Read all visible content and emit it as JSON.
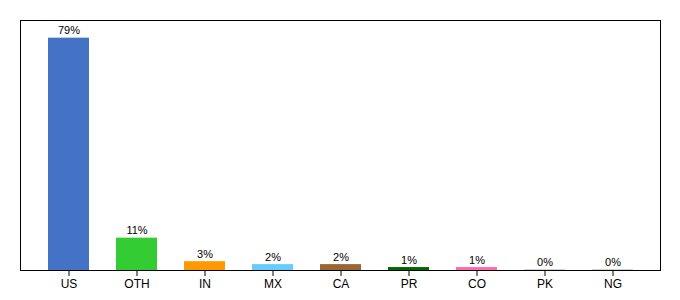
{
  "chart_data": {
    "type": "bar",
    "categories": [
      "US",
      "OTH",
      "IN",
      "MX",
      "CA",
      "PR",
      "CO",
      "PK",
      "NG"
    ],
    "values": [
      79,
      11,
      3,
      2,
      2,
      1,
      1,
      0.3,
      0.3
    ],
    "value_labels": [
      "79%",
      "11%",
      "3%",
      "2%",
      "2%",
      "1%",
      "1%",
      "0%",
      "0%"
    ],
    "colors": [
      "#4472c4",
      "#33cc33",
      "#ff9900",
      "#66ccff",
      "#996633",
      "#006600",
      "#ff69b4",
      "#cccccc",
      "#cccccc"
    ],
    "ylim": [
      0,
      85
    ],
    "data_labels": true,
    "tick_labels": "x"
  }
}
